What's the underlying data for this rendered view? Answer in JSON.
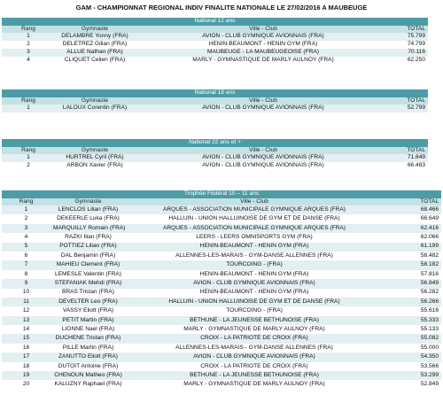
{
  "title": "GAM - CHAMPIONNAT REGIONAL INDIV FINALITE NATIONALE LE 27/02/2016 A MAUBEUGE",
  "sections": [
    {
      "title": "National 12 ans",
      "columns": [
        "Rang",
        "Gymnaste",
        "Ville - Club",
        "TOTAL"
      ],
      "rows": [
        [
          "1",
          "DELAMBRE Yonny (FRA)",
          "AVION - CLUB GYMNIQUE AVIONNAIS (FRA)",
          "75.799"
        ],
        [
          "2",
          "DELETREZ Gilian (FRA)",
          "HENIN-BEAUMONT - HENIN GYM (FRA)",
          "74.799"
        ],
        [
          "3",
          "ALLUE Nathan (FRA)",
          "MAUBEUGE - LA MAUBEUGEOISE (FRA)",
          "70.116"
        ],
        [
          "4",
          "CLIQUET Celien (FRA)",
          "MARLY - GYMNASTIQUE DE MARLY AULNOY (FRA)",
          "62.250"
        ]
      ]
    },
    {
      "title": "National 18 ans",
      "columns": [
        "Rang",
        "Gymnaste",
        "Ville - Club",
        "TOTAL"
      ],
      "rows": [
        [
          "1",
          "LALOUX Corentin (FRA)",
          "AVION - CLUB GYMNIQUE AVIONNAIS (FRA)",
          "52.799"
        ]
      ]
    },
    {
      "title": "National 22 ans et +",
      "columns": [
        "Rang",
        "Gymnaste",
        "Ville - Club",
        "TOTAL"
      ],
      "rows": [
        [
          "1",
          "HURTREL Cyril (FRA)",
          "AVION - CLUB GYMNIQUE AVIONNAIS (FRA)",
          "71.849"
        ],
        [
          "2",
          "ARBON Xavier (FRA)",
          "AVION - CLUB GYMNIQUE AVIONNAIS (FRA)",
          "66.483"
        ]
      ]
    },
    {
      "title": "Trophée Fédéral 10 – 11 ans",
      "columns": [
        "Rang",
        "Gymnaste",
        "Ville - Club",
        "TOTAL"
      ],
      "rows": [
        [
          "1",
          "LENCLOS Lilian (FRA)",
          "ARQUES - ASSOCIATION MUNICIPALE GYMNIQUE ARQUES (FRA)",
          "68.466"
        ],
        [
          "2",
          "DEKEERLE Luka (FRA)",
          "HALLUIN - UNION HALLUINOISE DE GYM ET DE DANSE (FRA)",
          "66.649"
        ],
        [
          "3",
          "MARQUILLY Romain (FRA)",
          "ARQUES - ASSOCIATION MUNICIPALE GYMNIQUE ARQUES (FRA)",
          "62.416"
        ],
        [
          "4",
          "RAZKI Ilian (FRA)",
          "LEERS - LEERS OMNISPORTS GYM (FRA)",
          "62.066"
        ],
        [
          "5",
          "POTTIEZ Lilian (FRA)",
          "HENIN-BEAUMONT - HENIN GYM (FRA)",
          "61.199"
        ],
        [
          "6",
          "DAL Benjamin (FRA)",
          "ALLENNES-LES-MARAIS - GYM-DANSE ALLENNES (FRA)",
          "58.482"
        ],
        [
          "7",
          "MAHIEU Clement (FRA)",
          "TOURCOING - (FRA)",
          "58.182"
        ],
        [
          "8",
          "LEMESLE Valentin (FRA)",
          "HENIN-BEAUMONT - HENIN GYM (FRA)",
          "57.816"
        ],
        [
          "9",
          "STEFANIAK Mehdi (FRA)",
          "AVION - CLUB GYMNIQUE AVIONNAIS (FRA)",
          "56.849"
        ],
        [
          "10",
          "BRAS Tristan (FRA)",
          "HENIN-BEAUMONT - HENIN GYM (FRA)",
          "56.282"
        ],
        [
          "11",
          "DEVELTER Leo (FRA)",
          "HALLUIN - UNION HALLUINOISE DE GYM ET DE DANSE (FRA)",
          "56.266"
        ],
        [
          "12",
          "VASSY Eliott (FRA)",
          "TOURCOING - (FRA)",
          "55.616"
        ],
        [
          "13",
          "PETIT Martin (FRA)",
          "BETHUNE - LA JEUNESSE BETHUNOISE (FRA)",
          "55.333"
        ],
        [
          "14",
          "LIONNE Nael (FRA)",
          "MARLY - GYMNASTIQUE DE MARLY AULNOY (FRA)",
          "55.133"
        ],
        [
          "15",
          "DUCHENE Tristan (FRA)",
          "CROIX - LA PATRIOTE DE CROIX (FRA)",
          "55.082"
        ],
        [
          "16",
          "PILLE Martin (FRA)",
          "ALLENNES-LES-MARAIS - GYM-DANSE ALLENNES (FRA)",
          "55.000"
        ],
        [
          "17",
          "ZANUTTO Eliott (FRA)",
          "AVION - CLUB GYMNIQUE AVIONNAIS (FRA)",
          "54.350"
        ],
        [
          "18",
          "DUTOIT Antoine (FRA)",
          "CROIX - LA PATRIOTE DE CROIX (FRA)",
          "53.566"
        ],
        [
          "19",
          "CHENOUN Matheo (FRA)",
          "BETHUNE - LA JEUNESSE BETHUNOISE (FRA)",
          "53.299"
        ],
        [
          "20",
          "KALUZNY Raphael (FRA)",
          "MARLY - GYMNASTIQUE DE MARLY AULNOY (FRA)",
          "52.849"
        ]
      ]
    }
  ]
}
